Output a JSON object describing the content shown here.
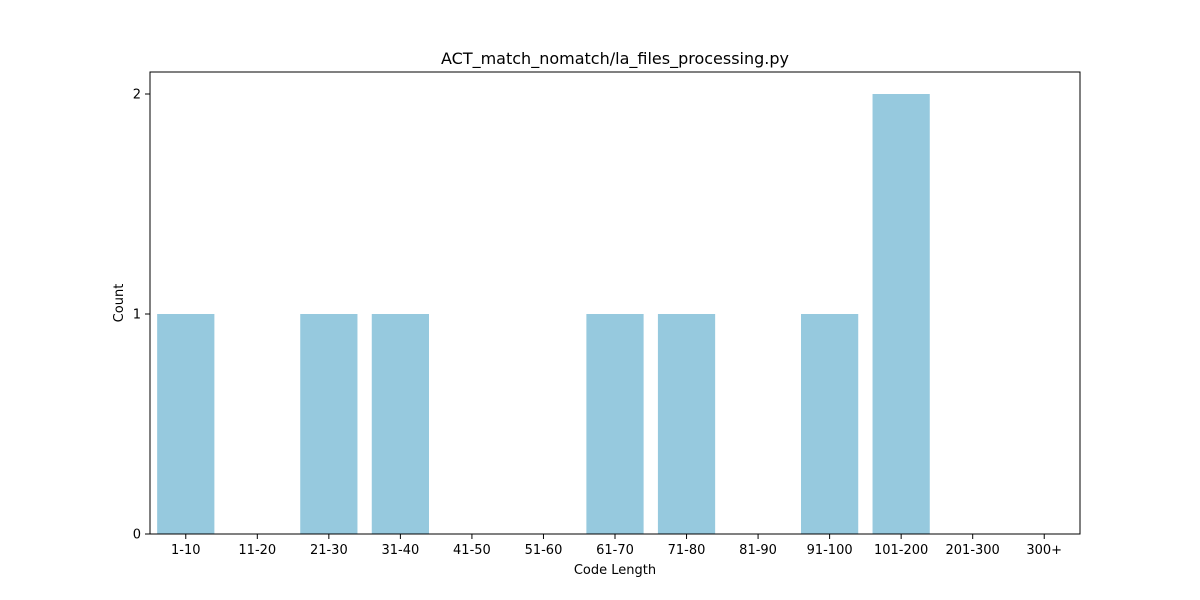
{
  "chart_data": {
    "type": "bar",
    "title": "ACT_match_nomatch/la_files_processing.py",
    "xlabel": "Code Length",
    "ylabel": "Count",
    "categories": [
      "1-10",
      "11-20",
      "21-30",
      "31-40",
      "41-50",
      "51-60",
      "61-70",
      "71-80",
      "81-90",
      "91-100",
      "101-200",
      "201-300",
      "300+"
    ],
    "values": [
      1,
      0,
      1,
      1,
      0,
      0,
      1,
      1,
      0,
      1,
      2,
      0,
      0
    ],
    "yticks": [
      "0",
      "1",
      "2"
    ],
    "ylim": [
      0,
      2.1
    ],
    "bar_color": "#96c9de",
    "grid": false,
    "legend": "none"
  }
}
